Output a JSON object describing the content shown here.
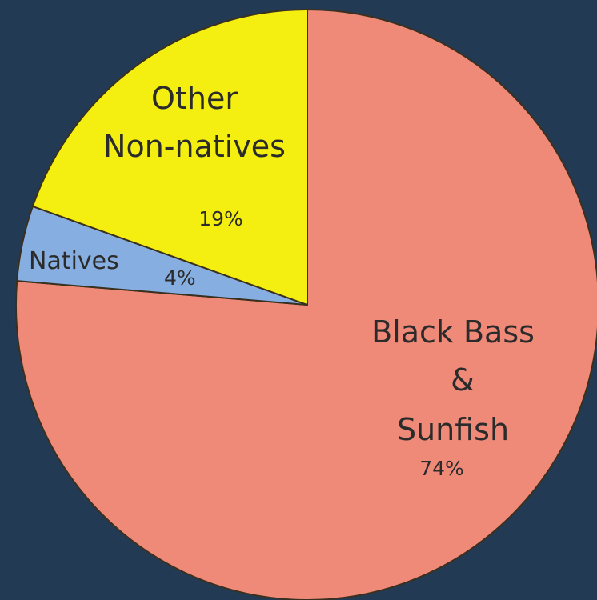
{
  "chart_data": {
    "type": "pie",
    "title": "",
    "slices": [
      {
        "label_lines": [
          "Black Bass",
          "&",
          "Sunfish"
        ],
        "value": 74,
        "value_label": "74%",
        "color": "#f08a78"
      },
      {
        "label_lines": [
          "Natives"
        ],
        "value": 4,
        "value_label": "4%",
        "color": "#86aee0"
      },
      {
        "label_lines": [
          "Other",
          "Non-natives"
        ],
        "value": 19,
        "value_label": "19%",
        "color": "#f4ef10"
      }
    ],
    "start_angle_deg": 0,
    "direction": "clockwise",
    "edge_color": "#3a3020"
  },
  "background_color": "#233a55"
}
